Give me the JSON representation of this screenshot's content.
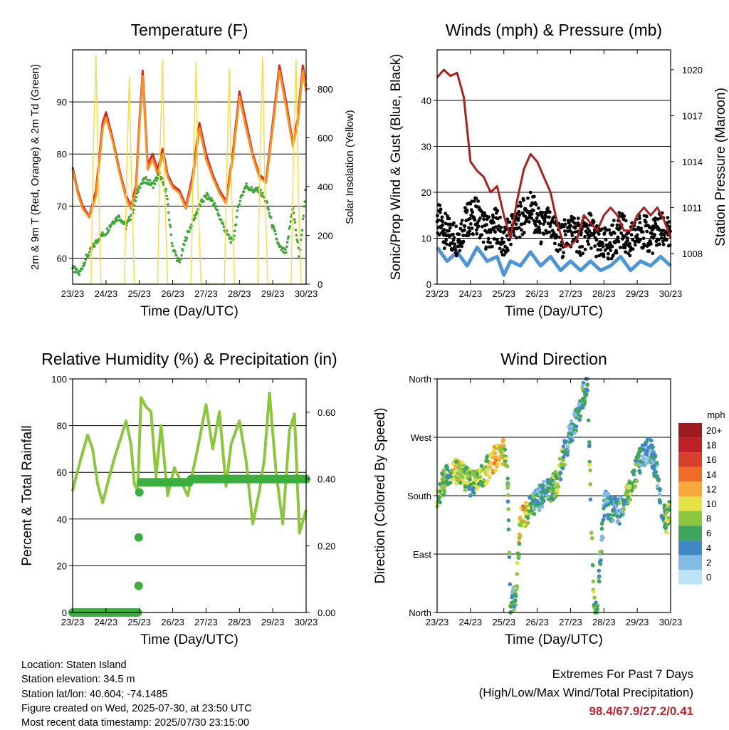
{
  "chart_data": [
    {
      "type": "line",
      "title": "Temperature (F)",
      "xlabel": "Time (Day/UTC)",
      "ylabel": "2m & 9m T (Red, Orange) & 2m Td (Green)",
      "ylabel_right": "Solar Insolation (Yellow)",
      "x_ticks": [
        "23/23",
        "24/23",
        "25/23",
        "26/23",
        "27/23",
        "28/23",
        "29/23",
        "30/23"
      ],
      "y_ticks": [
        60,
        70,
        80,
        90
      ],
      "y_ticks_right": [
        0,
        200,
        400,
        600,
        800
      ],
      "ylim": [
        55,
        100
      ],
      "ylim_right": [
        0,
        960
      ],
      "grid": true,
      "series": [
        {
          "name": "2m T",
          "color": "#d42727",
          "axis": "left",
          "x": [
            0,
            0.15,
            0.3,
            0.5,
            0.7,
            0.9,
            1.0,
            1.2,
            1.4,
            1.6,
            1.75,
            1.9,
            2.0,
            2.1,
            2.25,
            2.4,
            2.55,
            2.7,
            2.85,
            3.0,
            3.2,
            3.4,
            3.6,
            3.8,
            4.0,
            4.2,
            4.4,
            4.6,
            4.8,
            5.0,
            5.2,
            5.4,
            5.6,
            5.8,
            6.0,
            6.2,
            6.4,
            6.6,
            6.75,
            6.9,
            7.0
          ],
          "values": [
            77.5,
            73,
            70,
            68,
            73,
            86,
            88,
            83,
            77,
            72,
            70,
            74,
            86,
            96,
            78,
            80,
            77,
            81,
            76,
            74,
            73,
            70,
            76,
            86,
            80,
            76,
            73,
            71,
            80,
            92,
            86,
            80,
            76,
            75,
            86,
            97,
            90,
            82,
            87,
            97,
            93
          ]
        },
        {
          "name": "9m T",
          "color": "#f59225",
          "axis": "left",
          "x": [
            0,
            0.15,
            0.3,
            0.5,
            0.7,
            0.9,
            1.0,
            1.2,
            1.4,
            1.6,
            1.75,
            1.9,
            2.0,
            2.1,
            2.25,
            2.4,
            2.55,
            2.7,
            2.85,
            3.0,
            3.2,
            3.4,
            3.6,
            3.8,
            4.0,
            4.2,
            4.4,
            4.6,
            4.8,
            5.0,
            5.2,
            5.4,
            5.6,
            5.8,
            6.0,
            6.2,
            6.4,
            6.6,
            6.75,
            6.9,
            7.0
          ],
          "values": [
            77,
            72.5,
            69.5,
            67.8,
            72,
            85,
            87,
            82.5,
            76.5,
            71.5,
            69.5,
            73,
            85,
            95,
            77,
            79,
            76,
            80,
            75.5,
            73.5,
            72.5,
            69.5,
            75,
            85,
            79,
            75.5,
            72.5,
            70.5,
            79,
            91,
            85,
            79.5,
            75.5,
            74.5,
            85,
            96,
            89,
            81.5,
            86,
            96,
            92
          ]
        },
        {
          "name": "2m Td",
          "color": "#41a63b",
          "axis": "left",
          "x": [
            0,
            0.2,
            0.4,
            0.6,
            0.8,
            1.0,
            1.2,
            1.4,
            1.6,
            1.8,
            2.0,
            2.2,
            2.4,
            2.6,
            2.8,
            3.0,
            3.2,
            3.4,
            3.6,
            3.8,
            4.0,
            4.2,
            4.4,
            4.6,
            4.8,
            5.0,
            5.2,
            5.4,
            5.6,
            5.8,
            6.0,
            6.2,
            6.4,
            6.6,
            6.8,
            7.0
          ],
          "values": [
            58,
            57,
            60,
            62,
            64,
            65,
            67,
            68,
            66,
            69,
            74,
            75,
            74,
            76,
            73,
            62,
            59,
            64,
            67,
            70,
            72,
            71,
            68,
            65,
            63,
            71,
            74,
            73,
            73,
            71,
            66,
            62,
            61,
            70,
            60,
            74
          ]
        },
        {
          "name": "Solar Insolation",
          "color": "#f8db4a",
          "axis": "right",
          "x": [
            0,
            0.55,
            0.63,
            0.7,
            0.76,
            0.85,
            1.55,
            1.63,
            1.7,
            1.76,
            1.85,
            2.55,
            2.63,
            2.7,
            2.76,
            2.85,
            3.55,
            3.63,
            3.7,
            3.76,
            3.85,
            4.55,
            4.63,
            4.7,
            4.76,
            4.85,
            5.55,
            5.63,
            5.7,
            5.76,
            5.85,
            6.55,
            6.63,
            6.7,
            6.76,
            6.85,
            7.0
          ],
          "values": [
            0,
            0,
            600,
            940,
            500,
            0,
            0,
            500,
            850,
            450,
            0,
            0,
            600,
            920,
            400,
            0,
            0,
            560,
            910,
            350,
            0,
            0,
            500,
            880,
            420,
            0,
            0,
            600,
            930,
            420,
            0,
            0,
            600,
            920,
            400,
            0,
            0
          ]
        }
      ]
    },
    {
      "type": "line",
      "title": "Winds (mph) & Pressure (mb)",
      "xlabel": "Time (Day/UTC)",
      "ylabel": "Sonic/Prop Wind & Gust (Blue, Black)",
      "ylabel_right": "Station Pressure (Maroon)",
      "x_ticks": [
        "23/23",
        "24/23",
        "25/23",
        "26/23",
        "27/23",
        "28/23",
        "29/23",
        "30/23"
      ],
      "y_ticks": [
        0,
        10,
        20,
        30,
        40
      ],
      "y_ticks_right": [
        1008,
        1011,
        1014,
        1017,
        1020
      ],
      "ylim": [
        0,
        51
      ],
      "ylim_right": [
        1006,
        1021.3
      ],
      "grid": true,
      "series": [
        {
          "name": "Wind",
          "color": "#4d96d3",
          "axis": "left",
          "x": [
            0,
            0.3,
            0.6,
            0.9,
            1.2,
            1.5,
            1.8,
            2.0,
            2.2,
            2.5,
            2.8,
            3.1,
            3.4,
            3.7,
            4.0,
            4.3,
            4.6,
            4.9,
            5.2,
            5.5,
            5.8,
            6.1,
            6.4,
            6.7,
            7.0
          ],
          "values": [
            8,
            5,
            7,
            4,
            8,
            5,
            6,
            2,
            5,
            4,
            7,
            4,
            6,
            3,
            5,
            3,
            5,
            3,
            4,
            6,
            3,
            5,
            4,
            6,
            4
          ]
        },
        {
          "name": "Gust",
          "color": "#000000",
          "axis": "left",
          "x": [
            0,
            0.3,
            0.6,
            0.9,
            1.2,
            1.5,
            1.8,
            2.0,
            2.2,
            2.5,
            2.8,
            3.1,
            3.4,
            3.7,
            4.0,
            4.3,
            4.6,
            4.9,
            5.2,
            5.5,
            5.8,
            6.1,
            6.4,
            6.7,
            7.0
          ],
          "values": [
            14,
            11,
            10,
            14,
            15,
            11,
            13,
            8,
            12,
            14,
            17,
            12,
            13,
            9,
            12,
            10,
            12,
            8,
            9,
            12,
            9,
            12,
            10,
            12,
            10
          ]
        },
        {
          "name": "Station Pressure",
          "color": "#a32420",
          "axis": "right",
          "x": [
            0,
            0.2,
            0.4,
            0.6,
            0.8,
            1.0,
            1.2,
            1.4,
            1.6,
            1.8,
            2.0,
            2.2,
            2.4,
            2.6,
            2.8,
            3.0,
            3.2,
            3.4,
            3.6,
            3.8,
            4.0,
            4.2,
            4.4,
            4.6,
            4.8,
            5.0,
            5.2,
            5.4,
            5.6,
            5.8,
            6.0,
            6.2,
            6.4,
            6.6,
            6.8,
            7.0
          ],
          "values": [
            1019.5,
            1020,
            1019.6,
            1019.8,
            1018.2,
            1014,
            1013.4,
            1013,
            1012,
            1012.4,
            1010.5,
            1009,
            1011.5,
            1013.5,
            1014.5,
            1014,
            1013,
            1012,
            1010,
            1008.5,
            1008.5,
            1009,
            1010.5,
            1010,
            1009.5,
            1010.5,
            1011,
            1010.5,
            1009.5,
            1009.5,
            1010.5,
            1011,
            1010.5,
            1011,
            1010.2,
            1009
          ]
        }
      ]
    },
    {
      "type": "line",
      "title": "Relative Humidity (%) & Precipitation (in)",
      "xlabel": "Time (Day/UTC)",
      "ylabel": "Percent & Total Rainfall",
      "x_ticks": [
        "23/23",
        "24/23",
        "25/23",
        "26/23",
        "27/23",
        "28/23",
        "29/23",
        "30/23"
      ],
      "y_ticks": [
        0,
        20,
        40,
        60,
        80,
        100
      ],
      "y_ticks_right": [
        "0.00",
        "0.20",
        "0.40",
        "0.60"
      ],
      "ylim": [
        0,
        100
      ],
      "ylim_right": [
        0,
        0.7
      ],
      "grid": true,
      "series": [
        {
          "name": "Relative Humidity",
          "color": "#8cc63f",
          "axis": "left",
          "x": [
            0,
            0.1,
            0.25,
            0.45,
            0.6,
            0.75,
            0.9,
            1.1,
            1.25,
            1.45,
            1.6,
            1.75,
            1.85,
            1.95,
            2.05,
            2.2,
            2.35,
            2.5,
            2.65,
            2.85,
            3.05,
            3.25,
            3.45,
            3.6,
            3.8,
            4.0,
            4.2,
            4.4,
            4.6,
            4.75,
            5.0,
            5.2,
            5.4,
            5.6,
            5.75,
            5.9,
            6.1,
            6.3,
            6.5,
            6.65,
            6.8,
            7.0
          ],
          "values": [
            52,
            58,
            66,
            76,
            70,
            55,
            47,
            58,
            66,
            75,
            82,
            72,
            55,
            52,
            92,
            88,
            86,
            58,
            80,
            50,
            62,
            56,
            50,
            60,
            74,
            89,
            70,
            86,
            54,
            72,
            82,
            65,
            38,
            52,
            66,
            94,
            60,
            38,
            78,
            85,
            34,
            44
          ]
        },
        {
          "name": "Precipitation",
          "color": "#3cae3f",
          "axis": "right",
          "x": [
            0,
            1.0,
            1.95,
            1.97,
            1.98,
            2.0,
            2.02,
            2.5,
            3.0,
            3.5,
            3.55,
            4.0,
            5.0,
            6.0,
            7.0
          ],
          "values": [
            0,
            0,
            0,
            0.08,
            0.225,
            0.36,
            0.39,
            0.39,
            0.39,
            0.39,
            0.4,
            0.4,
            0.4,
            0.4,
            0.4
          ]
        }
      ]
    },
    {
      "type": "scatter",
      "title": "Wind Direction",
      "xlabel": "Time (Day/UTC)",
      "ylabel": "Direction (Colored By Speed)",
      "x_ticks": [
        "23/23",
        "24/23",
        "25/23",
        "26/23",
        "27/23",
        "28/23",
        "29/23",
        "30/23"
      ],
      "y_ticks": [
        "North",
        "East",
        "South",
        "West",
        "North"
      ],
      "ylim": [
        0,
        360
      ],
      "grid": true,
      "colorbar": {
        "title": "mph",
        "labels": [
          "20+",
          "18",
          "16",
          "14",
          "12",
          "10",
          "8",
          "6",
          "4",
          "2",
          "0"
        ],
        "colors": [
          "#9e1a1e",
          "#be2026",
          "#d63f2c",
          "#ef6c28",
          "#f9a83c",
          "#e4e145",
          "#8cc63f",
          "#3fa55d",
          "#3f88c5",
          "#82bbe6",
          "#bde3f7"
        ]
      },
      "series": [
        {
          "name": "Direction",
          "axis": "left",
          "x": [
            0,
            0.15,
            0.3,
            0.45,
            0.6,
            0.8,
            1.0,
            1.2,
            1.4,
            1.6,
            1.75,
            1.9,
            2.0,
            2.05,
            2.1,
            2.2,
            2.35,
            2.5,
            2.6,
            2.8,
            3.0,
            3.2,
            3.4,
            3.6,
            3.75,
            3.9,
            4.1,
            4.3,
            4.5,
            4.7,
            4.8,
            5.0,
            5.2,
            5.45,
            5.6,
            5.8,
            6.0,
            6.2,
            6.4,
            6.6,
            6.75,
            6.9,
            7.0
          ],
          "values": [
            182,
            195,
            208,
            215,
            218,
            210,
            200,
            205,
            212,
            230,
            238,
            245,
            248,
            235,
            240,
            10,
            25,
            140,
            150,
            160,
            170,
            185,
            190,
            200,
            235,
            260,
            290,
            320,
            355,
            15,
            5,
            170,
            160,
            155,
            165,
            190,
            225,
            245,
            250,
            215,
            150,
            140,
            160
          ],
          "speeds": [
            8,
            6,
            6,
            8,
            10,
            8,
            6,
            8,
            8,
            10,
            12,
            10,
            10,
            8,
            6,
            4,
            6,
            10,
            12,
            6,
            4,
            4,
            6,
            8,
            6,
            4,
            4,
            4,
            6,
            8,
            6,
            4,
            4,
            4,
            6,
            8,
            6,
            4,
            4,
            4,
            6,
            8,
            6
          ]
        }
      ]
    }
  ],
  "info": {
    "location": "Location: Staten Island",
    "elevation": "Station elevation: 34.5 m",
    "latlon": "Station lat/lon: 40.604; -74.1485",
    "created": "Figure created on Wed, 2025-07-30, at 23:50 UTC",
    "recent": "Most recent data timestamp: 2025/07/30 23:15:00"
  },
  "extremes": {
    "line1": "Extremes For Past 7 Days",
    "line2": "(High/Low/Max Wind/Total Precipitation)",
    "values": "98.4/67.9/27.2/0.41"
  }
}
